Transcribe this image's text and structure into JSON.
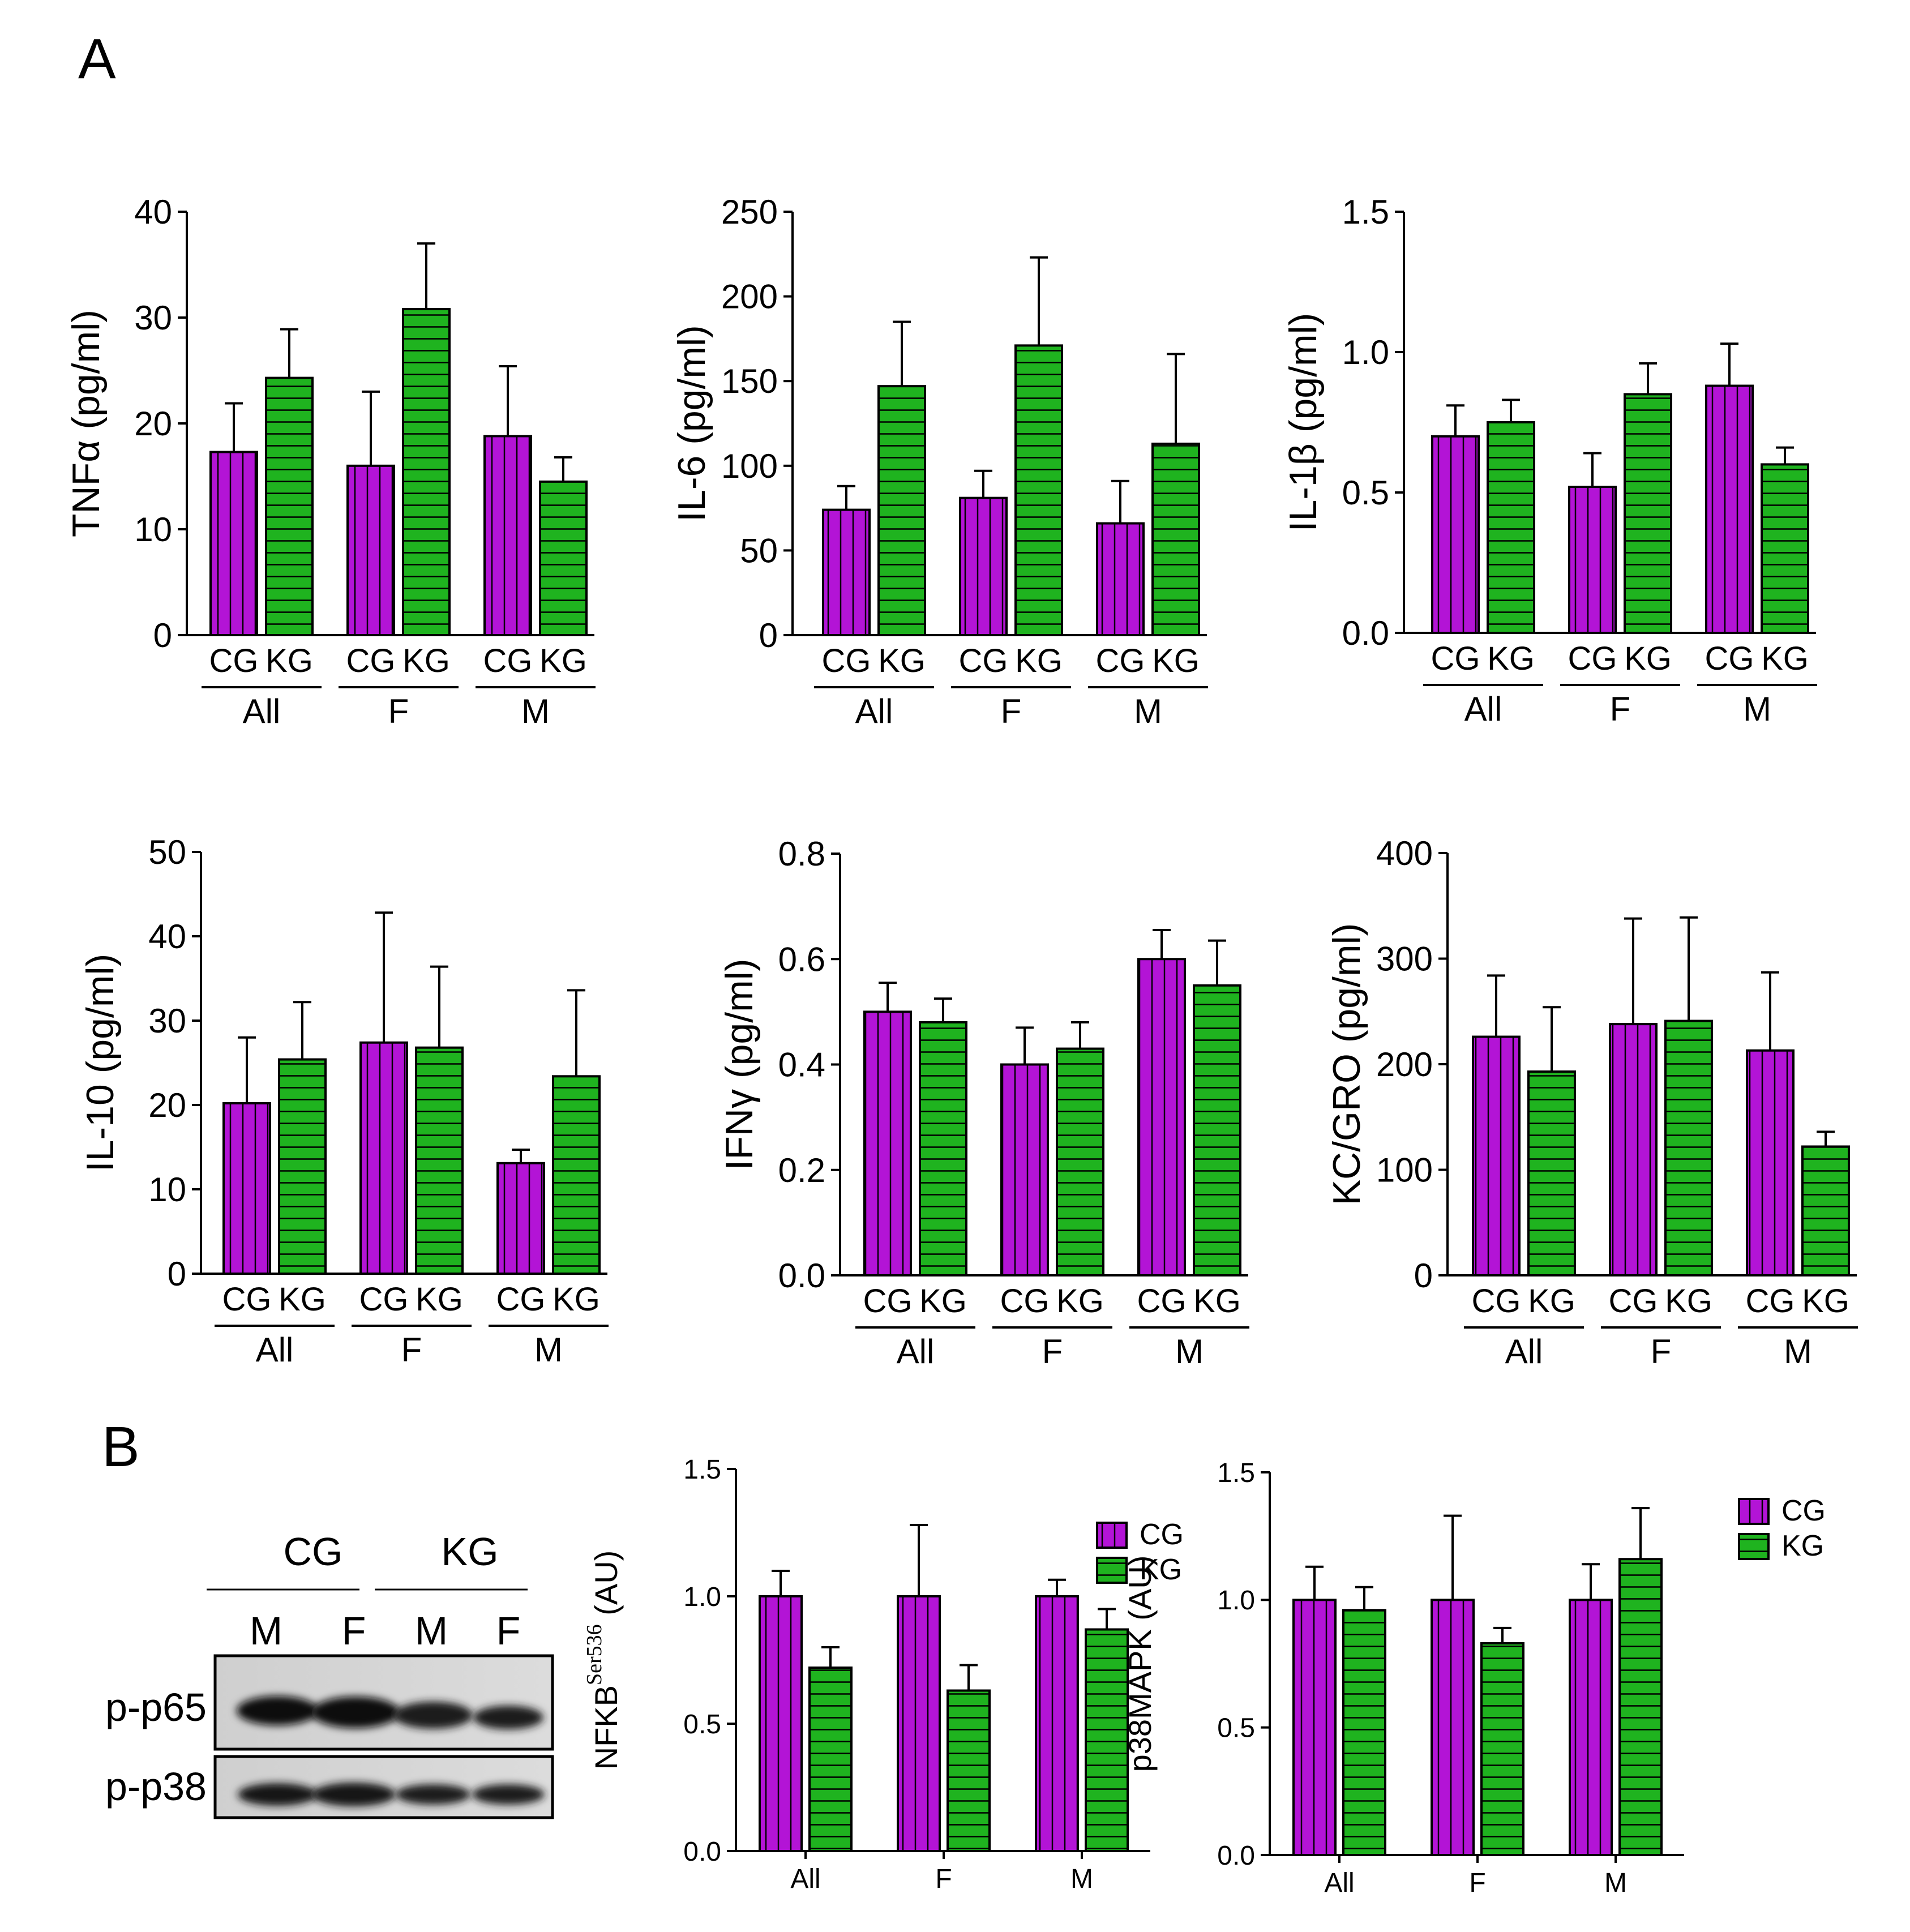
{
  "panel_labels": [
    "A",
    "B"
  ],
  "colors": {
    "cg": "#b314d6",
    "kg": "#1fb31f",
    "stroke": "#000000",
    "blot_bg": "#d4d4d4",
    "blot_band": "#1a1a1a"
  },
  "blot": {
    "groups": [
      "CG",
      "KG"
    ],
    "lanes": [
      "M",
      "F",
      "M",
      "F"
    ],
    "rows": [
      "p-p65",
      "p-p38"
    ]
  },
  "chart_data": [
    {
      "type": "bar",
      "ylabel": "TNFα (pg/ml)",
      "ylim": [
        0,
        40
      ],
      "yticks": [
        0,
        10,
        20,
        30,
        40
      ],
      "categories": [
        "All",
        "F",
        "M"
      ],
      "bar_labels": [
        "CG",
        "KG"
      ],
      "series": [
        {
          "name": "CG",
          "values": [
            17.3,
            16.0,
            18.8
          ],
          "errors": [
            4.6,
            7.0,
            6.6
          ]
        },
        {
          "name": "KG",
          "values": [
            24.3,
            30.8,
            14.5
          ],
          "errors": [
            4.6,
            6.2,
            2.3
          ]
        }
      ]
    },
    {
      "type": "bar",
      "ylabel": "IL-6 (pg/ml)",
      "ylim": [
        0,
        250
      ],
      "yticks": [
        0,
        50,
        100,
        150,
        200,
        250
      ],
      "categories": [
        "All",
        "F",
        "M"
      ],
      "bar_labels": [
        "CG",
        "KG"
      ],
      "series": [
        {
          "name": "CG",
          "values": [
            74,
            81,
            66
          ],
          "errors": [
            14,
            16,
            25
          ]
        },
        {
          "name": "KG",
          "values": [
            147,
            171,
            113
          ],
          "errors": [
            38,
            52,
            53
          ]
        }
      ]
    },
    {
      "type": "bar",
      "ylabel": "IL-1β (pg/ml)",
      "ylim": [
        0,
        1.5
      ],
      "yticks": [
        "0.0",
        "0.5",
        "1.0",
        "1.5"
      ],
      "categories": [
        "All",
        "F",
        "M"
      ],
      "bar_labels": [
        "CG",
        "KG"
      ],
      "series": [
        {
          "name": "CG",
          "values": [
            0.7,
            0.52,
            0.88
          ],
          "errors": [
            0.11,
            0.12,
            0.15
          ]
        },
        {
          "name": "KG",
          "values": [
            0.75,
            0.85,
            0.6
          ],
          "errors": [
            0.08,
            0.11,
            0.06
          ]
        }
      ]
    },
    {
      "type": "bar",
      "ylabel": "IL-10 (pg/ml)",
      "ylim": [
        0,
        50
      ],
      "yticks": [
        0,
        10,
        20,
        30,
        40,
        50
      ],
      "categories": [
        "All",
        "F",
        "M"
      ],
      "bar_labels": [
        "CG",
        "KG"
      ],
      "series": [
        {
          "name": "CG",
          "values": [
            20.2,
            27.4,
            13.1
          ],
          "errors": [
            7.8,
            15.4,
            1.6
          ]
        },
        {
          "name": "KG",
          "values": [
            25.4,
            26.8,
            23.4
          ],
          "errors": [
            6.8,
            9.6,
            10.2
          ]
        }
      ]
    },
    {
      "type": "bar",
      "ylabel": "IFNγ (pg/ml)",
      "ylim": [
        0,
        0.8
      ],
      "yticks": [
        "0.0",
        "0.2",
        "0.4",
        "0.6",
        "0.8"
      ],
      "categories": [
        "All",
        "F",
        "M"
      ],
      "bar_labels": [
        "CG",
        "KG"
      ],
      "series": [
        {
          "name": "CG",
          "values": [
            0.5,
            0.4,
            0.6
          ],
          "errors": [
            0.055,
            0.07,
            0.055
          ]
        },
        {
          "name": "KG",
          "values": [
            0.48,
            0.43,
            0.55
          ],
          "errors": [
            0.045,
            0.05,
            0.085
          ]
        }
      ]
    },
    {
      "type": "bar",
      "ylabel": "KC/GRO (pg/ml)",
      "ylim": [
        0,
        400
      ],
      "yticks": [
        0,
        100,
        200,
        300,
        400
      ],
      "categories": [
        "All",
        "F",
        "M"
      ],
      "bar_labels": [
        "CG",
        "KG"
      ],
      "series": [
        {
          "name": "CG",
          "values": [
            226,
            238,
            213
          ],
          "errors": [
            58,
            100,
            74
          ]
        },
        {
          "name": "KG",
          "values": [
            193,
            241,
            122
          ],
          "errors": [
            61,
            98,
            14
          ]
        }
      ]
    },
    {
      "type": "bar",
      "ylabel": "NFKB",
      "ylabel_sup": "Ser536",
      "ylabel_unit": " (AU)",
      "ylim": [
        0,
        1.5
      ],
      "yticks": [
        "0.0",
        "0.5",
        "1.0",
        "1.5"
      ],
      "categories": [
        "All",
        "F",
        "M"
      ],
      "legend": [
        "CG",
        "KG"
      ],
      "series": [
        {
          "name": "CG",
          "values": [
            1.0,
            1.0,
            1.0
          ],
          "errors": [
            0.1,
            0.28,
            0.065
          ]
        },
        {
          "name": "KG",
          "values": [
            0.72,
            0.63,
            0.87
          ],
          "errors": [
            0.08,
            0.1,
            0.08
          ]
        }
      ]
    },
    {
      "type": "bar",
      "ylabel": "p38MAPK (AU)",
      "ylim": [
        0,
        1.5
      ],
      "yticks": [
        "0.0",
        "0.5",
        "1.0",
        "1.5"
      ],
      "categories": [
        "All",
        "F",
        "M"
      ],
      "legend": [
        "CG",
        "KG"
      ],
      "series": [
        {
          "name": "CG",
          "values": [
            1.0,
            1.0,
            1.0
          ],
          "errors": [
            0.13,
            0.33,
            0.14
          ]
        },
        {
          "name": "KG",
          "values": [
            0.96,
            0.83,
            1.16
          ],
          "errors": [
            0.09,
            0.06,
            0.2
          ]
        }
      ]
    }
  ]
}
